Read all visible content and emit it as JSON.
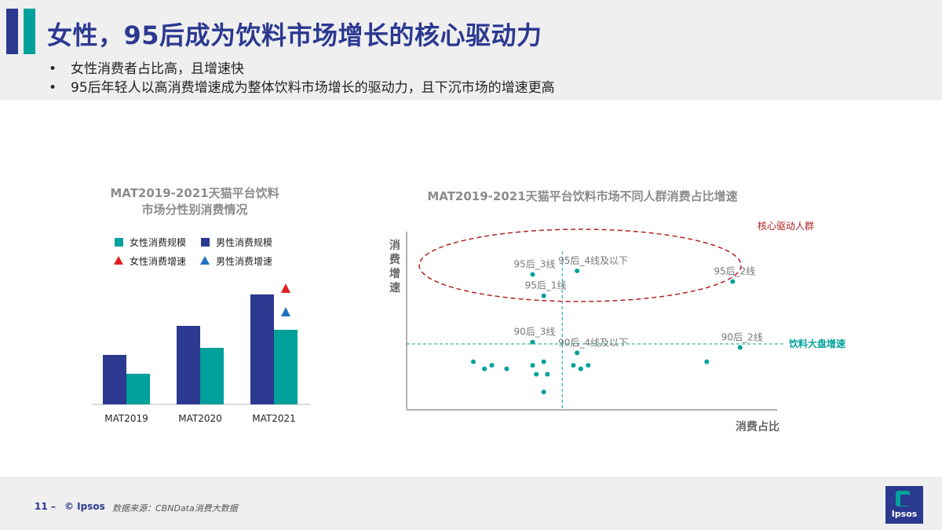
{
  "header": {
    "title": "女性，95后成为饮料市场增长的核心驱动力",
    "bullets": [
      "女性消费者占比高，且增速快",
      "95后年轻人以高消费增速成为整体饮料市场增长的驱动力，且下沉市场的增速更高"
    ]
  },
  "colors": {
    "navy": "#2b3990",
    "teal": "#00a19a",
    "red": "#e02020",
    "blue": "#1f73c4",
    "dark_red": "#b22222"
  },
  "chart_data": [
    {
      "type": "bar",
      "title_lines": [
        "MAT2019-2021天猫平台饮料",
        "市场分性别消费情况"
      ],
      "categories": [
        "MAT2019",
        "MAT2020",
        "MAT2021"
      ],
      "series": [
        {
          "name": "男性消费规模",
          "values": [
            63,
            100,
            140
          ]
        },
        {
          "name": "女性消费规模",
          "values": [
            39,
            72,
            95
          ]
        }
      ],
      "growth_markers": [
        {
          "name": "女性消费增速",
          "category": "MAT2021",
          "value": 148
        },
        {
          "name": "男性消费增速",
          "category": "MAT2021",
          "value": 118
        }
      ],
      "legend": [
        "女性消费规模",
        "男性消费规模",
        "女性消费增速",
        "男性消费增速"
      ],
      "ylim": [
        0,
        160
      ],
      "y_axis_labels": false
    },
    {
      "type": "scatter",
      "title": "MAT2019-2021天猫平台饮料市场不同人群消费占比增速",
      "xlabel": "消费占比",
      "ylabel": "消费增速",
      "xlim": [
        0,
        100
      ],
      "ylim": [
        0,
        100
      ],
      "reference_line": {
        "label": "饮料大盘增速",
        "y": 37
      },
      "vertical_line_x": 42,
      "highlight": {
        "label": "核心驱动人群"
      },
      "labeled_points": [
        {
          "label": "95后_3线",
          "x": 34,
          "y": 76
        },
        {
          "label": "95后_4线及以下",
          "x": 46,
          "y": 78
        },
        {
          "label": "95后_1线",
          "x": 37,
          "y": 64
        },
        {
          "label": "95后_2线",
          "x": 88,
          "y": 72
        },
        {
          "label": "90后_3线",
          "x": 34,
          "y": 38
        },
        {
          "label": "90后_4线及以下",
          "x": 46,
          "y": 32
        },
        {
          "label": "90后_2线",
          "x": 90,
          "y": 35
        }
      ],
      "other_points": [
        {
          "x": 18,
          "y": 27
        },
        {
          "x": 21,
          "y": 23
        },
        {
          "x": 23,
          "y": 25
        },
        {
          "x": 27,
          "y": 23
        },
        {
          "x": 34,
          "y": 25
        },
        {
          "x": 35,
          "y": 20
        },
        {
          "x": 37,
          "y": 27
        },
        {
          "x": 38,
          "y": 20
        },
        {
          "x": 37,
          "y": 10
        },
        {
          "x": 45,
          "y": 25
        },
        {
          "x": 47,
          "y": 23
        },
        {
          "x": 49,
          "y": 25
        },
        {
          "x": 81,
          "y": 27
        }
      ]
    }
  ],
  "footer": {
    "page": "11 –",
    "copyright": "© Ipsos",
    "source": "数据来源：CBNData消费大数据",
    "logo_text": "Ipsos"
  }
}
